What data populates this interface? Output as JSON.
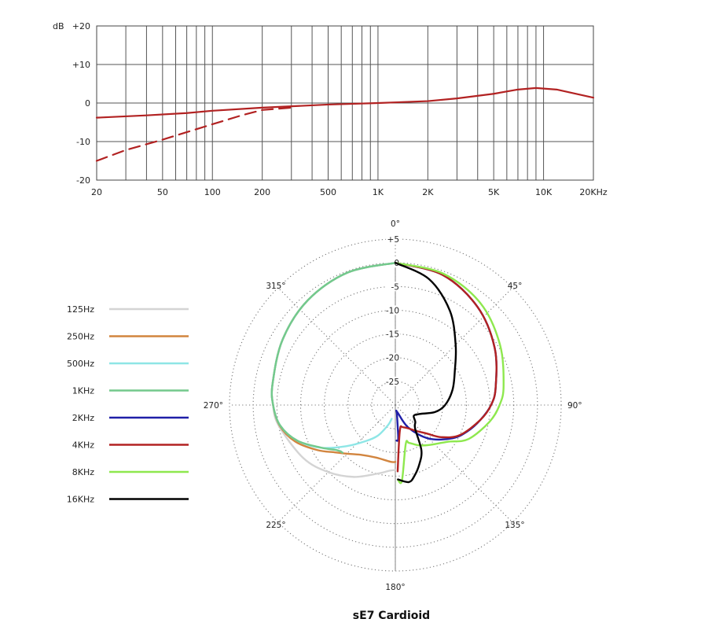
{
  "chart_data": [
    {
      "type": "line",
      "y_unit_label": "dB",
      "x_scale": "log",
      "xlim": [
        20,
        20000
      ],
      "ylim": [
        -20,
        20
      ],
      "x_ticks": [
        20,
        50,
        100,
        200,
        500,
        1000,
        2000,
        5000,
        10000,
        20000
      ],
      "x_tick_labels": [
        "20",
        "50",
        "100",
        "200",
        "500",
        "1K",
        "2K",
        "5K",
        "10K",
        "20KHz"
      ],
      "y_ticks": [
        20,
        10,
        0,
        -10,
        -20
      ],
      "y_tick_labels": [
        "+20",
        "+10",
        "0",
        "-10",
        "-20"
      ],
      "grid": true,
      "series": [
        {
          "style": "solid",
          "color": "#b22222",
          "points": [
            [
              20,
              -3.8
            ],
            [
              40,
              -3.2
            ],
            [
              70,
              -2.6
            ],
            [
              100,
              -2.0
            ],
            [
              200,
              -1.2
            ],
            [
              500,
              -0.4
            ],
            [
              1000,
              0.0
            ],
            [
              2000,
              0.5
            ],
            [
              3000,
              1.2
            ],
            [
              5000,
              2.4
            ],
            [
              7000,
              3.5
            ],
            [
              9000,
              3.9
            ],
            [
              12000,
              3.5
            ],
            [
              20000,
              1.4
            ]
          ]
        },
        {
          "style": "dashed",
          "color": "#b22222",
          "points": [
            [
              20,
              -15.0
            ],
            [
              30,
              -12.2
            ],
            [
              50,
              -9.5
            ],
            [
              100,
              -5.5
            ],
            [
              150,
              -3.2
            ],
            [
              200,
              -1.8
            ],
            [
              300,
              -1.2
            ]
          ]
        }
      ]
    },
    {
      "type": "polar",
      "title": "sE7 Cardioid",
      "angle_labels": [
        {
          "deg": 0,
          "text": "0°"
        },
        {
          "deg": 45,
          "text": "45°"
        },
        {
          "deg": 90,
          "text": "90°"
        },
        {
          "deg": 135,
          "text": "135°"
        },
        {
          "deg": 180,
          "text": "180°"
        },
        {
          "deg": 225,
          "text": "225°"
        },
        {
          "deg": 270,
          "text": "270°"
        },
        {
          "deg": 315,
          "text": "315°"
        }
      ],
      "r_ticks": [
        5,
        0,
        -5,
        -10,
        -15,
        -20,
        -25
      ],
      "r_tick_labels": [
        "+5",
        "0",
        "-5",
        "-10",
        "-15",
        "-20",
        "-25"
      ],
      "rlim": [
        -30,
        5
      ],
      "grid": "dotted",
      "legend_placement": "left",
      "series": [
        {
          "name": "125Hz",
          "color": "#d4d4d4",
          "points": [
            [
              0,
              0
            ],
            [
              20,
              -0.3
            ],
            [
              40,
              -1.2
            ],
            [
              60,
              -2.5
            ],
            [
              80,
              -3.7
            ],
            [
              90,
              -4.2
            ],
            [
              100,
              -5.0
            ],
            [
              120,
              -7.6
            ],
            [
              135,
              -10.0
            ],
            [
              150,
              -12.5
            ],
            [
              165,
              -15.0
            ],
            [
              175,
              -16.1
            ],
            [
              180,
              -16.3
            ]
          ]
        },
        {
          "name": "250Hz",
          "color": "#d2853f",
          "points": [
            [
              0,
              0
            ],
            [
              20,
              -0.3
            ],
            [
              40,
              -1.2
            ],
            [
              60,
              -2.5
            ],
            [
              80,
              -3.7
            ],
            [
              90,
              -4.2
            ],
            [
              100,
              -5.2
            ],
            [
              110,
              -7.5
            ],
            [
              120,
              -11.0
            ],
            [
              128,
              -13.8
            ],
            [
              135,
              -15.5
            ],
            [
              145,
              -17.2
            ],
            [
              160,
              -18.2
            ],
            [
              175,
              -18.0
            ],
            [
              180,
              -18.0
            ]
          ]
        },
        {
          "name": "500Hz",
          "color": "#8ee6e6",
          "points": [
            [
              0,
              0
            ],
            [
              20,
              -0.3
            ],
            [
              40,
              -1.2
            ],
            [
              60,
              -2.5
            ],
            [
              80,
              -3.7
            ],
            [
              90,
              -4.2
            ],
            [
              100,
              -5.3
            ],
            [
              110,
              -8.0
            ],
            [
              120,
              -12.0
            ],
            [
              130,
              -16.5
            ],
            [
              140,
              -20.0
            ],
            [
              150,
              -22.5
            ],
            [
              160,
              -25.5
            ],
            [
              165,
              -27.0
            ]
          ]
        },
        {
          "name": "1KHz",
          "color": "#73c98c",
          "points": [
            [
              0,
              0
            ],
            [
              20,
              -0.3
            ],
            [
              40,
              -1.2
            ],
            [
              60,
              -2.5
            ],
            [
              80,
              -3.7
            ],
            [
              90,
              -4.2
            ],
            [
              100,
              -5.3
            ],
            [
              110,
              -8.0
            ],
            [
              120,
              -12.0
            ],
            [
              128,
              -14.5
            ],
            [
              132,
              -15.0
            ]
          ]
        },
        {
          "name": "2KHz",
          "color": "#1f1fa8",
          "points": [
            [
              0,
              0
            ],
            [
              20,
              -0.8
            ],
            [
              40,
              -3.0
            ],
            [
              60,
              -5.8
            ],
            [
              80,
              -8.5
            ],
            [
              90,
              -9.8
            ],
            [
              100,
              -11.8
            ],
            [
              110,
              -13.8
            ],
            [
              120,
              -16.0
            ],
            [
              135,
              -20.0
            ],
            [
              150,
              -24.5
            ],
            [
              165,
              -28.5
            ],
            [
              170,
              -28.0
            ],
            [
              175,
              -23.0
            ],
            [
              178,
              -22.5
            ]
          ]
        },
        {
          "name": "4KHz",
          "color": "#b22222",
          "points": [
            [
              0,
              0
            ],
            [
              20,
              -0.8
            ],
            [
              40,
              -3.0
            ],
            [
              60,
              -5.8
            ],
            [
              80,
              -8.5
            ],
            [
              90,
              -9.8
            ],
            [
              100,
              -11.8
            ],
            [
              115,
              -15.0
            ],
            [
              125,
              -18.2
            ],
            [
              132,
              -21.0
            ],
            [
              140,
              -22.8
            ],
            [
              160,
              -25.0
            ],
            [
              170,
              -24.5
            ],
            [
              178,
              -16.0
            ]
          ]
        },
        {
          "name": "8KHz",
          "color": "#8ee84e",
          "points": [
            [
              0,
              0
            ],
            [
              20,
              -0.5
            ],
            [
              40,
              -2.0
            ],
            [
              60,
              -4.5
            ],
            [
              80,
              -6.8
            ],
            [
              90,
              -8.0
            ],
            [
              100,
              -9.8
            ],
            [
              115,
              -13.0
            ],
            [
              125,
              -16.5
            ],
            [
              140,
              -19.0
            ],
            [
              150,
              -20.2
            ],
            [
              160,
              -21.5
            ],
            [
              165,
              -21.5
            ],
            [
              175,
              -14.0
            ],
            [
              178,
              -14.2
            ]
          ]
        },
        {
          "name": "16KHz",
          "color": "#000000",
          "points": [
            [
              0,
              0
            ],
            [
              15,
              -2.5
            ],
            [
              30,
              -7.0
            ],
            [
              45,
              -12.0
            ],
            [
              60,
              -15.5
            ],
            [
              75,
              -17.5
            ],
            [
              90,
              -19.5
            ],
            [
              100,
              -21.5
            ],
            [
              110,
              -24.5
            ],
            [
              120,
              -25.5
            ],
            [
              130,
              -24.5
            ],
            [
              140,
              -23.5
            ],
            [
              150,
              -19.0
            ],
            [
              158,
              -16.5
            ],
            [
              165,
              -14.5
            ],
            [
              170,
              -13.5
            ],
            [
              178,
              -14.3
            ]
          ]
        }
      ]
    }
  ]
}
